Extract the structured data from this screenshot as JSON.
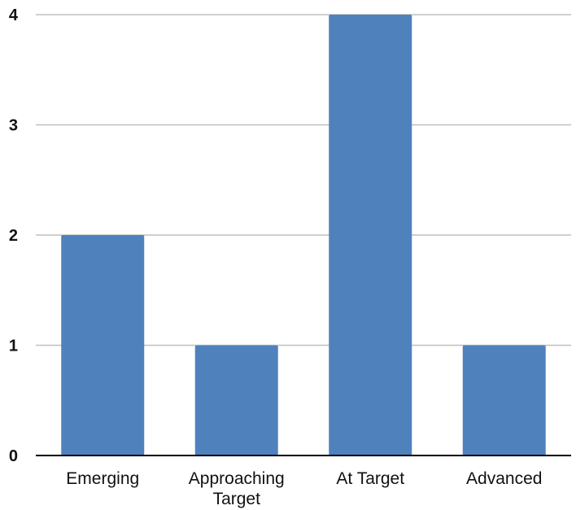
{
  "chart_data": {
    "type": "bar",
    "categories": [
      "Emerging",
      "Approaching Target",
      "At Target",
      "Advanced"
    ],
    "category_label_lines": [
      [
        "Emerging"
      ],
      [
        "Approaching",
        "Target"
      ],
      [
        "At Target"
      ],
      [
        "Advanced"
      ]
    ],
    "values": [
      2,
      1,
      4,
      1
    ],
    "yticks": [
      0,
      1,
      2,
      3,
      4
    ],
    "ylim": [
      0,
      4
    ],
    "grid": true,
    "legend": "none",
    "bar_color": "#4f81bd",
    "title": "",
    "xlabel": "",
    "ylabel": ""
  }
}
